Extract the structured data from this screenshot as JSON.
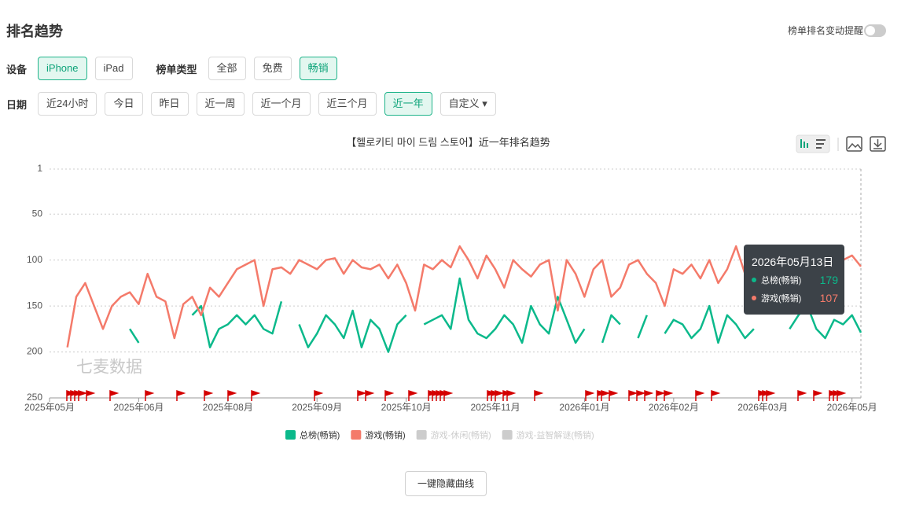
{
  "header": {
    "title": "排名趋势",
    "toggle_label": "榜单排名变动提醒"
  },
  "filters": {
    "device": {
      "label": "设备",
      "options": [
        "iPhone",
        "iPad"
      ],
      "active": 0
    },
    "list_type": {
      "label": "榜单类型",
      "options": [
        "全部",
        "免费",
        "畅销"
      ],
      "active": 2
    },
    "date": {
      "label": "日期",
      "options": [
        "近24小时",
        "今日",
        "昨日",
        "近一周",
        "近一个月",
        "近三个月",
        "近一年",
        "自定义"
      ],
      "active": 6
    }
  },
  "chart_data": {
    "type": "line",
    "title": "【헬로키티 마이 드림 스토어】近一年排名趋势",
    "watermark": "七麦数据",
    "categories": [
      "2025年05月",
      null,
      null,
      null,
      null,
      null,
      null,
      null,
      null,
      null,
      "2025年06月",
      null,
      null,
      null,
      null,
      null,
      null,
      null,
      null,
      null,
      "2025年08月",
      null,
      null,
      null,
      null,
      null,
      null,
      null,
      null,
      null,
      "2025年09月",
      null,
      null,
      null,
      null,
      null,
      null,
      null,
      null,
      null,
      "2025年10月",
      null,
      null,
      null,
      null,
      null,
      null,
      null,
      null,
      null,
      "2025年11月",
      null,
      null,
      null,
      null,
      null,
      null,
      null,
      null,
      null,
      "2026年01月",
      null,
      null,
      null,
      null,
      null,
      null,
      null,
      null,
      null,
      "2026年02月",
      null,
      null,
      null,
      null,
      null,
      null,
      null,
      null,
      null,
      "2026年03月",
      null,
      null,
      null,
      null,
      null,
      null,
      null,
      null,
      null,
      "2026年05月",
      null
    ],
    "series": [
      {
        "name": "总榜(畅销)",
        "color": "#0bb98b",
        "values": [
          null,
          null,
          null,
          null,
          null,
          null,
          null,
          null,
          null,
          175,
          190,
          null,
          null,
          null,
          null,
          null,
          160,
          150,
          195,
          175,
          170,
          160,
          170,
          160,
          175,
          180,
          145,
          null,
          170,
          195,
          180,
          160,
          170,
          185,
          155,
          195,
          165,
          175,
          200,
          170,
          160,
          null,
          170,
          165,
          160,
          175,
          120,
          165,
          180,
          185,
          175,
          160,
          170,
          190,
          150,
          170,
          180,
          140,
          165,
          190,
          175,
          null,
          190,
          160,
          170,
          null,
          185,
          160,
          null,
          180,
          165,
          170,
          185,
          175,
          150,
          190,
          160,
          170,
          185,
          175,
          null,
          195,
          null,
          175,
          160,
          150,
          175,
          185,
          165,
          170,
          160,
          179
        ]
      },
      {
        "name": "游戏(畅销)",
        "color": "#f47a6a",
        "values": [
          null,
          null,
          195,
          140,
          125,
          150,
          175,
          150,
          140,
          135,
          148,
          115,
          140,
          145,
          185,
          148,
          140,
          160,
          130,
          140,
          125,
          110,
          105,
          100,
          150,
          110,
          108,
          115,
          100,
          105,
          110,
          100,
          98,
          115,
          100,
          108,
          110,
          105,
          120,
          105,
          125,
          155,
          105,
          110,
          100,
          108,
          85,
          100,
          120,
          95,
          110,
          130,
          100,
          110,
          118,
          105,
          100,
          155,
          100,
          115,
          140,
          110,
          100,
          140,
          130,
          105,
          100,
          115,
          125,
          150,
          110,
          115,
          105,
          120,
          100,
          125,
          110,
          85,
          115,
          105,
          100,
          125,
          105,
          110,
          118,
          100,
          110,
          120,
          105,
          100,
          95,
          107
        ]
      }
    ],
    "hidden_series": [
      {
        "name": "游戏-休闲(畅销)",
        "color": "#cccccc"
      },
      {
        "name": "游戏-益智解谜(畅销)",
        "color": "#cccccc"
      }
    ],
    "ylim": [
      1,
      250
    ],
    "yticks": [
      1,
      50,
      100,
      150,
      200,
      250
    ],
    "y_inverse": true,
    "grid": true,
    "tooltip": {
      "title": "2026年05月13日",
      "items": [
        {
          "name": "总榜(畅销)",
          "value": 179
        },
        {
          "name": "游戏(畅销)",
          "value": 107
        }
      ]
    }
  },
  "footer": {
    "button": "一键隐藏曲线"
  }
}
